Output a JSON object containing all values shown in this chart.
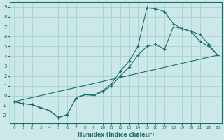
{
  "xlabel": "Humidex (Indice chaleur)",
  "bg_color": "#cce8e8",
  "grid_color": "#9ecfcf",
  "line_color": "#1a6b6b",
  "xlim": [
    -0.5,
    23.5
  ],
  "ylim": [
    -2.8,
    9.5
  ],
  "xticks": [
    0,
    1,
    2,
    3,
    4,
    5,
    6,
    7,
    8,
    9,
    10,
    11,
    12,
    13,
    14,
    15,
    16,
    17,
    18,
    19,
    20,
    21,
    22,
    23
  ],
  "yticks": [
    -2,
    -1,
    0,
    1,
    2,
    3,
    4,
    5,
    6,
    7,
    8,
    9
  ],
  "line1_x": [
    0,
    1,
    2,
    3,
    4,
    5,
    6,
    7,
    8,
    9,
    10,
    11,
    12,
    13,
    14,
    15,
    16,
    17,
    18,
    19,
    20,
    21,
    22,
    23
  ],
  "line1_y": [
    -0.6,
    -0.8,
    -0.9,
    -1.2,
    -1.5,
    -2.2,
    -1.9,
    -0.2,
    0.1,
    0.05,
    0.5,
    1.2,
    2.5,
    3.5,
    5.0,
    8.9,
    8.8,
    8.5,
    7.3,
    6.8,
    6.5,
    6.2,
    5.2,
    4.1
  ],
  "line2_x": [
    0,
    1,
    2,
    3,
    4,
    5,
    6,
    7,
    8,
    9,
    10,
    11,
    12,
    13,
    14,
    15,
    16,
    17,
    18,
    19,
    20,
    21,
    22,
    23
  ],
  "line2_y": [
    -0.6,
    -0.8,
    -0.9,
    -1.2,
    -1.5,
    -2.2,
    -1.9,
    -0.2,
    0.1,
    0.05,
    0.4,
    1.0,
    2.0,
    2.9,
    4.1,
    5.0,
    5.2,
    4.7,
    7.0,
    6.8,
    6.5,
    5.5,
    5.0,
    4.1
  ],
  "line3_x": [
    0,
    23
  ],
  "line3_y": [
    -0.6,
    4.1
  ]
}
